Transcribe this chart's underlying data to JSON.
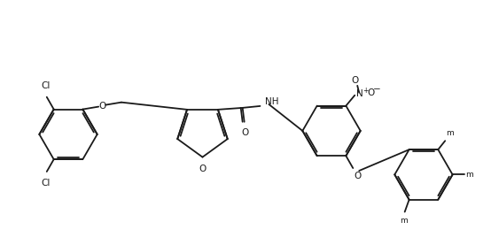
{
  "background_color": "#ffffff",
  "line_color": "#1a1a1a",
  "line_width": 1.3,
  "figsize": [
    5.54,
    2.77
  ],
  "dpi": 100,
  "font_size": 7.5,
  "labels": {
    "Cl_top": "Cl",
    "Cl_bottom": "Cl",
    "O_ether_left": "O",
    "O_furan": "O",
    "O_carbonyl": "O",
    "NH": "NH",
    "NO2": "N",
    "NO2_plus": "+",
    "NO2_O_right": "O",
    "NO2_minus": "-",
    "O_ether_right": "O",
    "m1": "m",
    "m2": "m",
    "m3": "m"
  }
}
